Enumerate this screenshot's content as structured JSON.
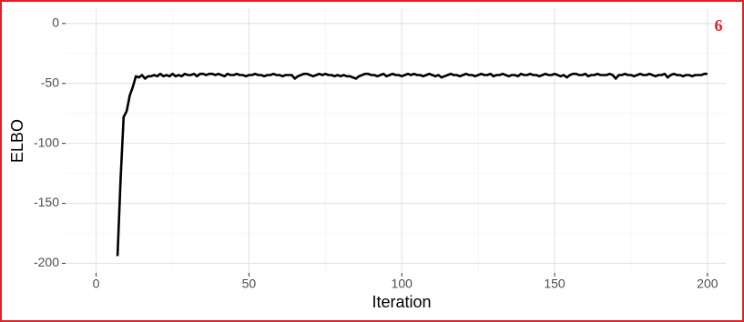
{
  "chart_data": {
    "type": "line",
    "annotation": "6",
    "x_label": "Iteration",
    "y_label": "ELBO",
    "x": [
      7,
      8,
      9,
      10,
      11,
      12,
      13,
      14,
      15,
      16,
      17,
      18,
      19,
      20,
      21,
      22,
      23,
      24,
      25,
      26,
      27,
      28,
      29,
      30,
      31,
      32,
      33,
      34,
      35,
      36,
      37,
      38,
      39,
      40,
      41,
      42,
      43,
      44,
      45,
      46,
      47,
      48,
      49,
      50,
      51,
      52,
      53,
      54,
      55,
      56,
      57,
      58,
      59,
      60,
      61,
      62,
      63,
      64,
      65,
      66,
      67,
      68,
      69,
      70,
      71,
      72,
      73,
      74,
      75,
      76,
      77,
      78,
      79,
      80,
      81,
      82,
      83,
      84,
      85,
      86,
      87,
      88,
      89,
      90,
      91,
      92,
      93,
      94,
      95,
      96,
      97,
      98,
      99,
      100,
      101,
      102,
      103,
      104,
      105,
      106,
      107,
      108,
      109,
      110,
      111,
      112,
      113,
      114,
      115,
      116,
      117,
      118,
      119,
      120,
      121,
      122,
      123,
      124,
      125,
      126,
      127,
      128,
      129,
      130,
      131,
      132,
      133,
      134,
      135,
      136,
      137,
      138,
      139,
      140,
      141,
      142,
      143,
      144,
      145,
      146,
      147,
      148,
      149,
      150,
      151,
      152,
      153,
      154,
      155,
      156,
      157,
      158,
      159,
      160,
      161,
      162,
      163,
      164,
      165,
      166,
      167,
      168,
      169,
      170,
      171,
      172,
      173,
      174,
      175,
      176,
      177,
      178,
      179,
      180,
      181,
      182,
      183,
      184,
      185,
      186,
      187,
      188,
      189,
      190,
      191,
      192,
      193,
      194,
      195,
      196,
      197,
      198,
      199,
      200
    ],
    "series": [
      {
        "color": "#000000",
        "values": [
          -194,
          -130,
          -78,
          -73,
          -60,
          -53,
          -44,
          -45,
          -43,
          -46,
          -44,
          -44,
          -43,
          -44,
          -42,
          -44,
          -43,
          -44,
          -42,
          -44,
          -43,
          -44,
          -42,
          -43,
          -43,
          -42,
          -44,
          -42,
          -42,
          -43,
          -42,
          -42,
          -43,
          -42,
          -43,
          -44,
          -42,
          -43,
          -43,
          -42,
          -43,
          -43,
          -44,
          -43,
          -43,
          -42,
          -43,
          -43,
          -44,
          -43,
          -43,
          -42,
          -43,
          -43,
          -44,
          -43,
          -43,
          -43,
          -46,
          -44,
          -43,
          -42,
          -42,
          -43,
          -44,
          -43,
          -42,
          -43,
          -42,
          -43,
          -43,
          -44,
          -43,
          -44,
          -43,
          -44,
          -44,
          -45,
          -46,
          -44,
          -43,
          -42,
          -42,
          -43,
          -43,
          -44,
          -43,
          -42,
          -44,
          -43,
          -42,
          -43,
          -43,
          -44,
          -43,
          -42,
          -43,
          -42,
          -43,
          -43,
          -44,
          -43,
          -42,
          -43,
          -44,
          -43,
          -45,
          -44,
          -43,
          -42,
          -43,
          -43,
          -44,
          -43,
          -42,
          -43,
          -43,
          -44,
          -43,
          -42,
          -43,
          -43,
          -42,
          -44,
          -43,
          -43,
          -42,
          -43,
          -44,
          -43,
          -43,
          -44,
          -42,
          -43,
          -43,
          -42,
          -43,
          -43,
          -44,
          -43,
          -42,
          -43,
          -43,
          -42,
          -43,
          -44,
          -43,
          -45,
          -43,
          -42,
          -42,
          -43,
          -43,
          -42,
          -44,
          -43,
          -43,
          -42,
          -43,
          -43,
          -43,
          -42,
          -43,
          -46,
          -43,
          -43,
          -42,
          -43,
          -43,
          -44,
          -43,
          -42,
          -43,
          -43,
          -42,
          -43,
          -44,
          -43,
          -43,
          -42,
          -45,
          -43,
          -42,
          -43,
          -43,
          -44,
          -43,
          -43,
          -44,
          -43,
          -43,
          -43,
          -42,
          -42
        ]
      }
    ],
    "xlim": [
      -10,
      206
    ],
    "ylim": [
      -208,
      12
    ],
    "xticks": [
      0,
      50,
      100,
      150,
      200
    ],
    "yticks": [
      0,
      -50,
      -100,
      -150,
      -200
    ],
    "grid": true,
    "minor_grid": true
  }
}
